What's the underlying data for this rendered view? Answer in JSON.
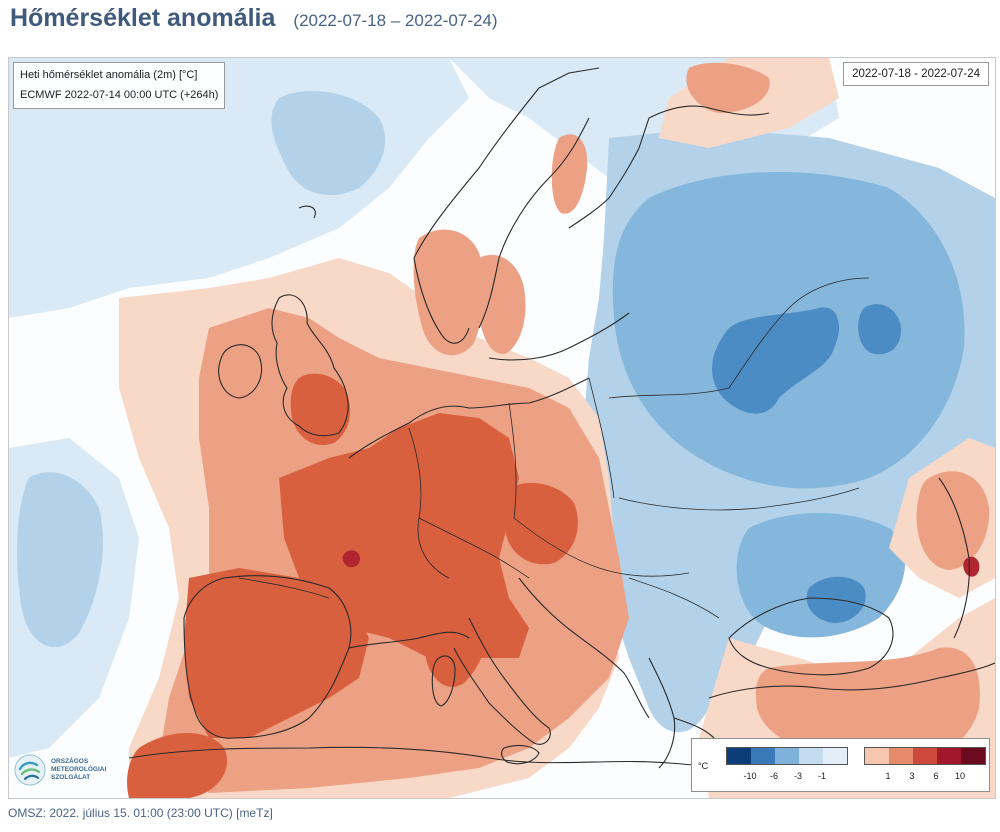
{
  "header": {
    "title": "Hőmérséklet anomália",
    "date_range": "(2022-07-18 – 2022-07-24)"
  },
  "map": {
    "info_line1": "Heti hőmérséklet anomália (2m) [°C]",
    "info_line2": "ECMWF 2022-07-14 00:00 UTC (+264h)",
    "date_box": "2022-07-18 - 2022-07-24",
    "regions": {
      "warm_core": "western and central Europe",
      "cold_core": "eastern Europe"
    }
  },
  "legend": {
    "unit": "°C",
    "cold_ticks": [
      "-10",
      "-6",
      "-3",
      "-1"
    ],
    "warm_ticks": [
      "1",
      "3",
      "6",
      "10"
    ],
    "cold_colors": [
      "#0c3d78",
      "#3a7ab8",
      "#7fb2db",
      "#c3dcef"
    ],
    "warm_colors": [
      "#f6c7ae",
      "#e58b6c",
      "#cd4a3a",
      "#a3172c",
      "#6c0a1f"
    ]
  },
  "logo": {
    "lines": [
      "ORSZÁGOS",
      "METEOROLÓGIAI",
      "SZOLGÁLAT"
    ]
  },
  "footer": {
    "text": "OMSZ: 2022. július 15. 01:00 (23:00  UTC)  [meTz]"
  },
  "colors": {
    "title": "#3f5a7c",
    "ocean_neutral": "#fbfdff",
    "pale_blue": "#d9e9f5",
    "light_blue": "#b3d2ea",
    "mid_blue": "#85b6dc",
    "dark_blue": "#4b8cc4",
    "pale_red": "#f8d9c8",
    "light_red": "#eda184",
    "mid_red": "#d9603f",
    "dark_red": "#b02530"
  }
}
